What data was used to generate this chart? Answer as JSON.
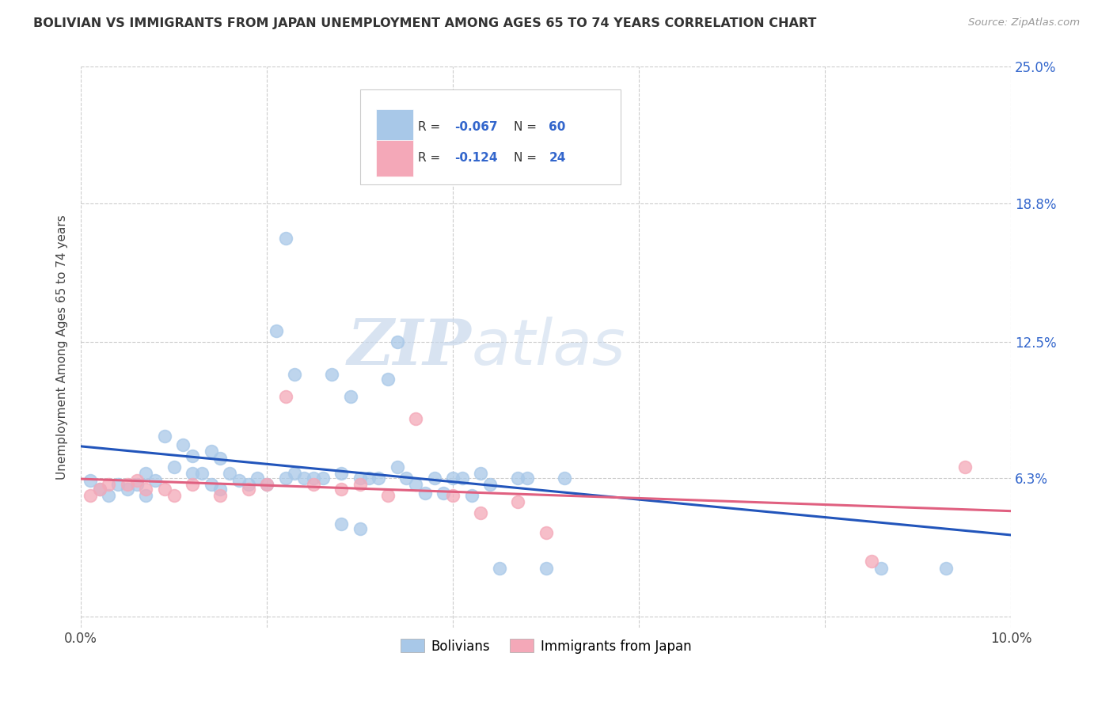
{
  "title": "BOLIVIAN VS IMMIGRANTS FROM JAPAN UNEMPLOYMENT AMONG AGES 65 TO 74 YEARS CORRELATION CHART",
  "source": "Source: ZipAtlas.com",
  "ylabel": "Unemployment Among Ages 65 to 74 years",
  "xlim": [
    0.0,
    0.1
  ],
  "ylim": [
    -0.005,
    0.25
  ],
  "ytick_positions": [
    0.0,
    0.063,
    0.125,
    0.188,
    0.25
  ],
  "ytick_labels": [
    "",
    "6.3%",
    "12.5%",
    "18.8%",
    "25.0%"
  ],
  "bolivians_color": "#a8c8e8",
  "japan_color": "#f4a8b8",
  "trend_bolivia_color": "#2255bb",
  "trend_japan_color": "#e06080",
  "watermark_zip": "ZIP",
  "watermark_atlas": "atlas",
  "legend_R_bolivia": "-0.067",
  "legend_N_bolivia": "60",
  "legend_R_japan": "-0.124",
  "legend_N_japan": "24",
  "bx": [
    0.001,
    0.002,
    0.003,
    0.004,
    0.005,
    0.006,
    0.007,
    0.007,
    0.008,
    0.009,
    0.01,
    0.011,
    0.012,
    0.012,
    0.013,
    0.014,
    0.014,
    0.015,
    0.015,
    0.016,
    0.017,
    0.018,
    0.019,
    0.02,
    0.021,
    0.022,
    0.022,
    0.023,
    0.023,
    0.024,
    0.025,
    0.026,
    0.027,
    0.028,
    0.028,
    0.029,
    0.03,
    0.03,
    0.031,
    0.032,
    0.033,
    0.034,
    0.034,
    0.035,
    0.036,
    0.037,
    0.038,
    0.039,
    0.04,
    0.041,
    0.042,
    0.043,
    0.044,
    0.045,
    0.047,
    0.048,
    0.05,
    0.052,
    0.086,
    0.093
  ],
  "by": [
    0.062,
    0.058,
    0.055,
    0.06,
    0.058,
    0.06,
    0.055,
    0.065,
    0.062,
    0.082,
    0.068,
    0.078,
    0.065,
    0.073,
    0.065,
    0.06,
    0.075,
    0.058,
    0.072,
    0.065,
    0.062,
    0.06,
    0.063,
    0.06,
    0.13,
    0.172,
    0.063,
    0.065,
    0.11,
    0.063,
    0.063,
    0.063,
    0.11,
    0.065,
    0.042,
    0.1,
    0.063,
    0.04,
    0.063,
    0.063,
    0.108,
    0.068,
    0.125,
    0.063,
    0.06,
    0.056,
    0.063,
    0.056,
    0.063,
    0.063,
    0.055,
    0.065,
    0.06,
    0.022,
    0.063,
    0.063,
    0.022,
    0.063,
    0.022,
    0.022
  ],
  "jx": [
    0.001,
    0.002,
    0.003,
    0.005,
    0.006,
    0.007,
    0.009,
    0.01,
    0.012,
    0.015,
    0.018,
    0.02,
    0.022,
    0.025,
    0.028,
    0.03,
    0.033,
    0.036,
    0.04,
    0.043,
    0.047,
    0.05,
    0.085,
    0.095
  ],
  "jy": [
    0.055,
    0.058,
    0.06,
    0.06,
    0.062,
    0.058,
    0.058,
    0.055,
    0.06,
    0.055,
    0.058,
    0.06,
    0.1,
    0.06,
    0.058,
    0.06,
    0.055,
    0.09,
    0.055,
    0.047,
    0.052,
    0.038,
    0.025,
    0.068
  ]
}
